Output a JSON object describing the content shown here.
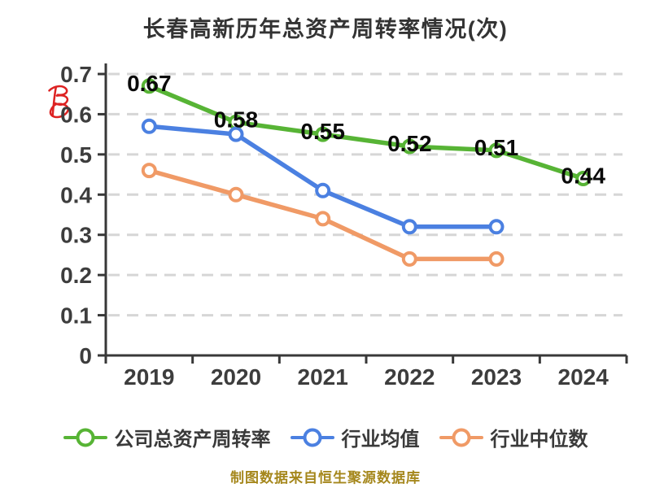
{
  "source_note": "制图数据来自恒生聚源数据库",
  "watermark": {
    "shape": "red-scribble",
    "color": "#dd2222"
  },
  "colors": {
    "company_line": "#57b435",
    "industry_mean_line": "#4b80e1",
    "industry_median_line": "#f09a66",
    "grid": "#d6d6d6",
    "axis": "#383838",
    "tick_label": "#3d3d3d",
    "data_label": "#0a0a0a",
    "legend_text": "#3a3a3a",
    "source_note": "#a5871c"
  },
  "chart_data": {
    "type": "line",
    "title": "长春高新历年总资产周转率情况(次)",
    "categories": [
      "2019",
      "2020",
      "2021",
      "2022",
      "2023",
      "2024"
    ],
    "series": [
      {
        "name": "公司总资产周转率",
        "color": "#57b435",
        "values": [
          0.67,
          0.58,
          0.55,
          0.52,
          0.51,
          0.44
        ],
        "point_labels": [
          "0.67",
          "0.58",
          "0.55",
          "0.52",
          "0.51",
          "0.44"
        ]
      },
      {
        "name": "行业均值",
        "color": "#4b80e1",
        "values": [
          0.57,
          0.55,
          0.41,
          0.32,
          0.32,
          null
        ]
      },
      {
        "name": "行业中位数",
        "color": "#f09a66",
        "values": [
          0.46,
          0.4,
          0.34,
          0.24,
          0.24,
          null
        ]
      }
    ],
    "ylim": [
      0,
      0.7
    ],
    "yticks": [
      "0",
      "0.1",
      "0.2",
      "0.3",
      "0.4",
      "0.5",
      "0.6",
      "0.7"
    ],
    "grid": "horizontal-dashed",
    "legend_position": "bottom",
    "marker_style": "white-fill-colored-ring"
  }
}
